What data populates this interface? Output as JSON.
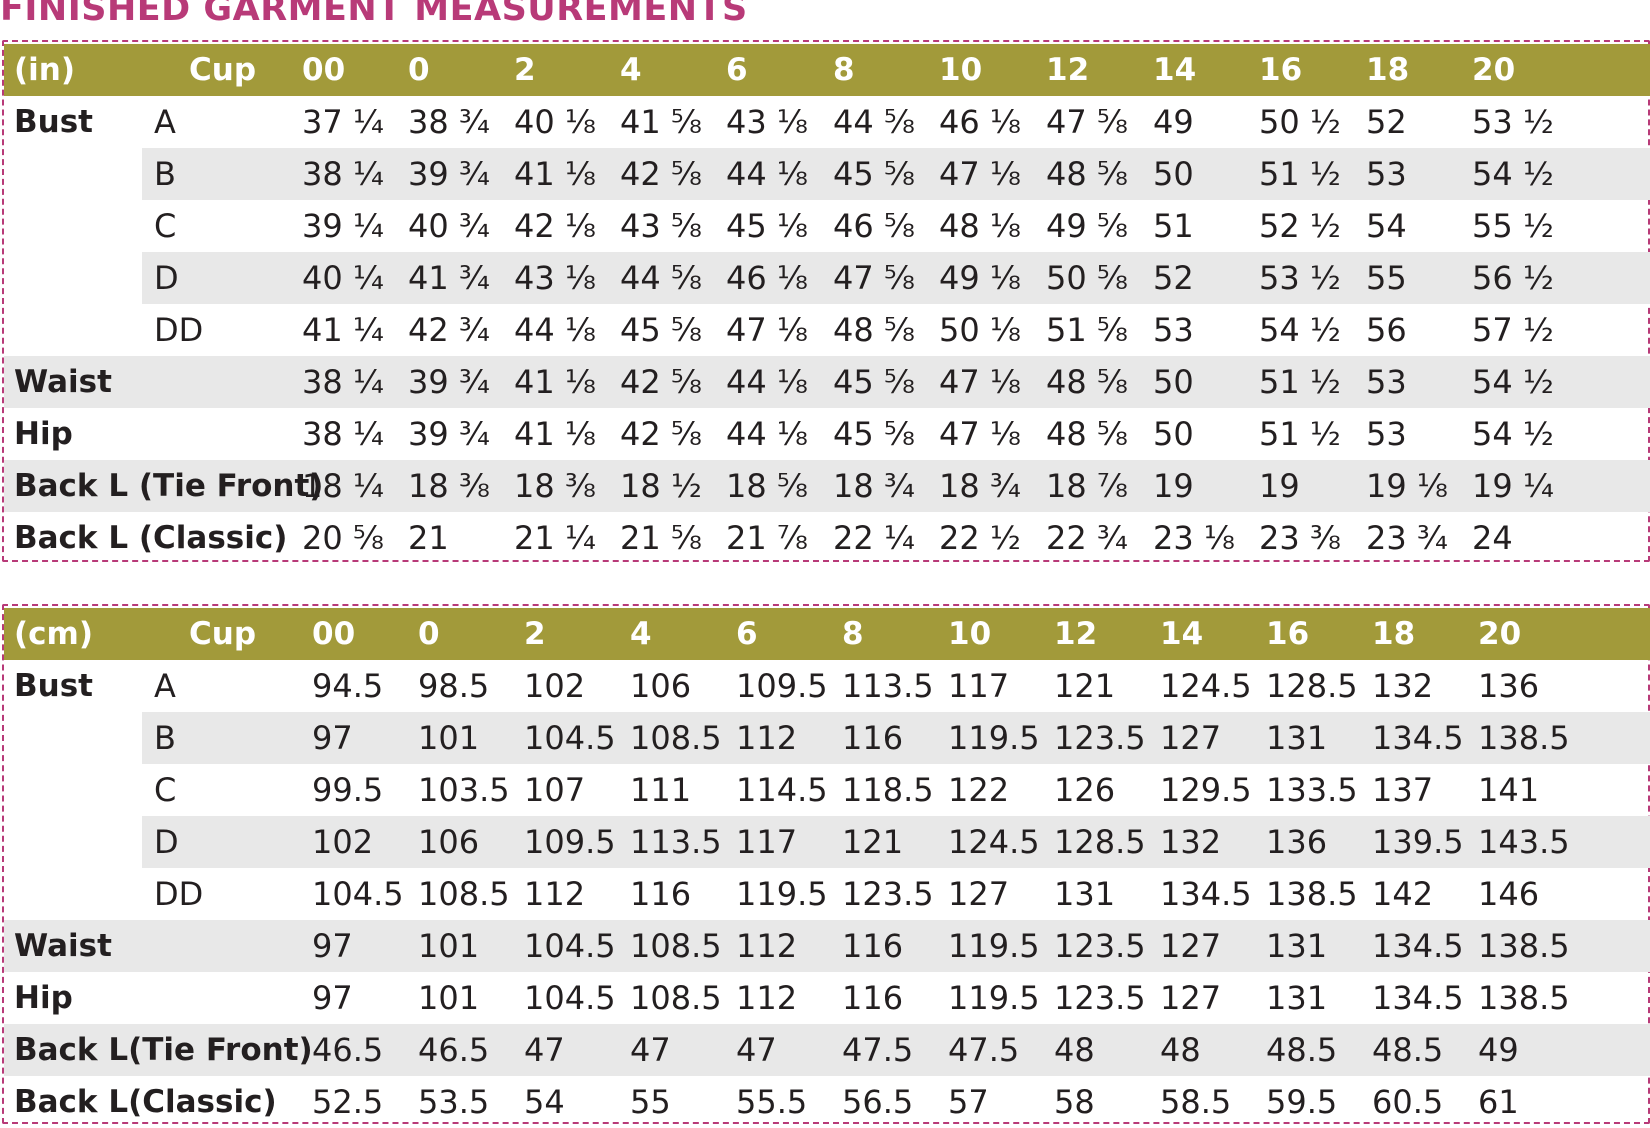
{
  "title": "FINISHED GARMENT MEASUREMENTS",
  "tables": [
    {
      "unit": "(in)",
      "cup_header": "Cup",
      "sizes": [
        "00",
        "0",
        "2",
        "4",
        "6",
        "8",
        "10",
        "12",
        "14",
        "16",
        "18",
        "20"
      ],
      "rows": [
        {
          "label": "Bust",
          "cup": "A",
          "values": [
            "37 ¼",
            "38 ¾",
            "40 ⅛",
            "41 ⅝",
            "43 ⅛",
            "44 ⅝",
            "46 ⅛",
            "47 ⅝",
            "49",
            "50 ½",
            "52",
            "53 ½"
          ]
        },
        {
          "label": "",
          "cup": "B",
          "values": [
            "38 ¼",
            "39 ¾",
            "41 ⅛",
            "42 ⅝",
            "44 ⅛",
            "45 ⅝",
            "47 ⅛",
            "48 ⅝",
            "50",
            "51 ½",
            "53",
            "54 ½"
          ]
        },
        {
          "label": "",
          "cup": "C",
          "values": [
            "39 ¼",
            "40 ¾",
            "42 ⅛",
            "43 ⅝",
            "45 ⅛",
            "46 ⅝",
            "48 ⅛",
            "49 ⅝",
            "51",
            "52 ½",
            "54",
            "55 ½"
          ]
        },
        {
          "label": "",
          "cup": "D",
          "values": [
            "40 ¼",
            "41 ¾",
            "43 ⅛",
            "44 ⅝",
            "46 ⅛",
            "47 ⅝",
            "49 ⅛",
            "50 ⅝",
            "52",
            "53 ½",
            "55",
            "56 ½"
          ]
        },
        {
          "label": "",
          "cup": "DD",
          "values": [
            "41 ¼",
            "42 ¾",
            "44 ⅛",
            "45 ⅝",
            "47 ⅛",
            "48 ⅝",
            "50 ⅛",
            "51 ⅝",
            "53",
            "54 ½",
            "56",
            "57 ½"
          ]
        },
        {
          "label": "Waist",
          "cup": "",
          "values": [
            "38 ¼",
            "39 ¾",
            "41 ⅛",
            "42 ⅝",
            "44 ⅛",
            "45 ⅝",
            "47 ⅛",
            "48 ⅝",
            "50",
            "51 ½",
            "53",
            "54 ½"
          ]
        },
        {
          "label": "Hip",
          "cup": "",
          "values": [
            "38 ¼",
            "39 ¾",
            "41 ⅛",
            "42 ⅝",
            "44 ⅛",
            "45 ⅝",
            "47 ⅛",
            "48 ⅝",
            "50",
            "51 ½",
            "53",
            "54 ½"
          ]
        },
        {
          "label": "Back L (Tie Front)",
          "cup": "",
          "values": [
            "18 ¼",
            "18 ⅜",
            "18 ⅜",
            "18 ½",
            "18 ⅝",
            "18 ¾",
            "18 ¾",
            "18 ⅞",
            "19",
            "19",
            "19 ⅛",
            "19 ¼"
          ]
        },
        {
          "label": "Back L (Classic)",
          "cup": "",
          "values": [
            "20 ⅝",
            "21",
            "21 ¼",
            "21 ⅝",
            "21 ⅞",
            "22 ¼",
            "22 ½",
            "22 ¾",
            "23 ⅛",
            "23 ⅜",
            "23 ¾",
            "24"
          ]
        }
      ]
    },
    {
      "unit": "(cm)",
      "cup_header": "Cup",
      "sizes": [
        "00",
        "0",
        "2",
        "4",
        "6",
        "8",
        "10",
        "12",
        "14",
        "16",
        "18",
        "20"
      ],
      "rows": [
        {
          "label": "Bust",
          "cup": "A",
          "values": [
            "94.5",
            "98.5",
            "102",
            "106",
            "109.5",
            "113.5",
            "117",
            "121",
            "124.5",
            "128.5",
            "132",
            "136"
          ]
        },
        {
          "label": "",
          "cup": "B",
          "values": [
            "97",
            "101",
            "104.5",
            "108.5",
            "112",
            "116",
            "119.5",
            "123.5",
            "127",
            "131",
            "134.5",
            "138.5"
          ]
        },
        {
          "label": "",
          "cup": "C",
          "values": [
            "99.5",
            "103.5",
            "107",
            "111",
            "114.5",
            "118.5",
            "122",
            "126",
            "129.5",
            "133.5",
            "137",
            "141"
          ]
        },
        {
          "label": "",
          "cup": "D",
          "values": [
            "102",
            "106",
            "109.5",
            "113.5",
            "117",
            "121",
            "124.5",
            "128.5",
            "132",
            "136",
            "139.5",
            "143.5"
          ]
        },
        {
          "label": "",
          "cup": "DD",
          "values": [
            "104.5",
            "108.5",
            "112",
            "116",
            "119.5",
            "123.5",
            "127",
            "131",
            "134.5",
            "138.5",
            "142",
            "146"
          ]
        },
        {
          "label": "Waist",
          "cup": "",
          "values": [
            "97",
            "101",
            "104.5",
            "108.5",
            "112",
            "116",
            "119.5",
            "123.5",
            "127",
            "131",
            "134.5",
            "138.5"
          ]
        },
        {
          "label": "Hip",
          "cup": "",
          "values": [
            "97",
            "101",
            "104.5",
            "108.5",
            "112",
            "116",
            "119.5",
            "123.5",
            "127",
            "131",
            "134.5",
            "138.5"
          ]
        },
        {
          "label": "Back L(Tie Front)",
          "cup": "",
          "values": [
            "46.5",
            "46.5",
            "47",
            "47",
            "47",
            "47.5",
            "47.5",
            "48",
            "48",
            "48.5",
            "48.5",
            "49"
          ]
        },
        {
          "label": "Back L(Classic)",
          "cup": "",
          "values": [
            "52.5",
            "53.5",
            "54",
            "55",
            "55.5",
            "56.5",
            "57",
            "58",
            "58.5",
            "59.5",
            "60.5",
            "61"
          ]
        }
      ]
    }
  ]
}
